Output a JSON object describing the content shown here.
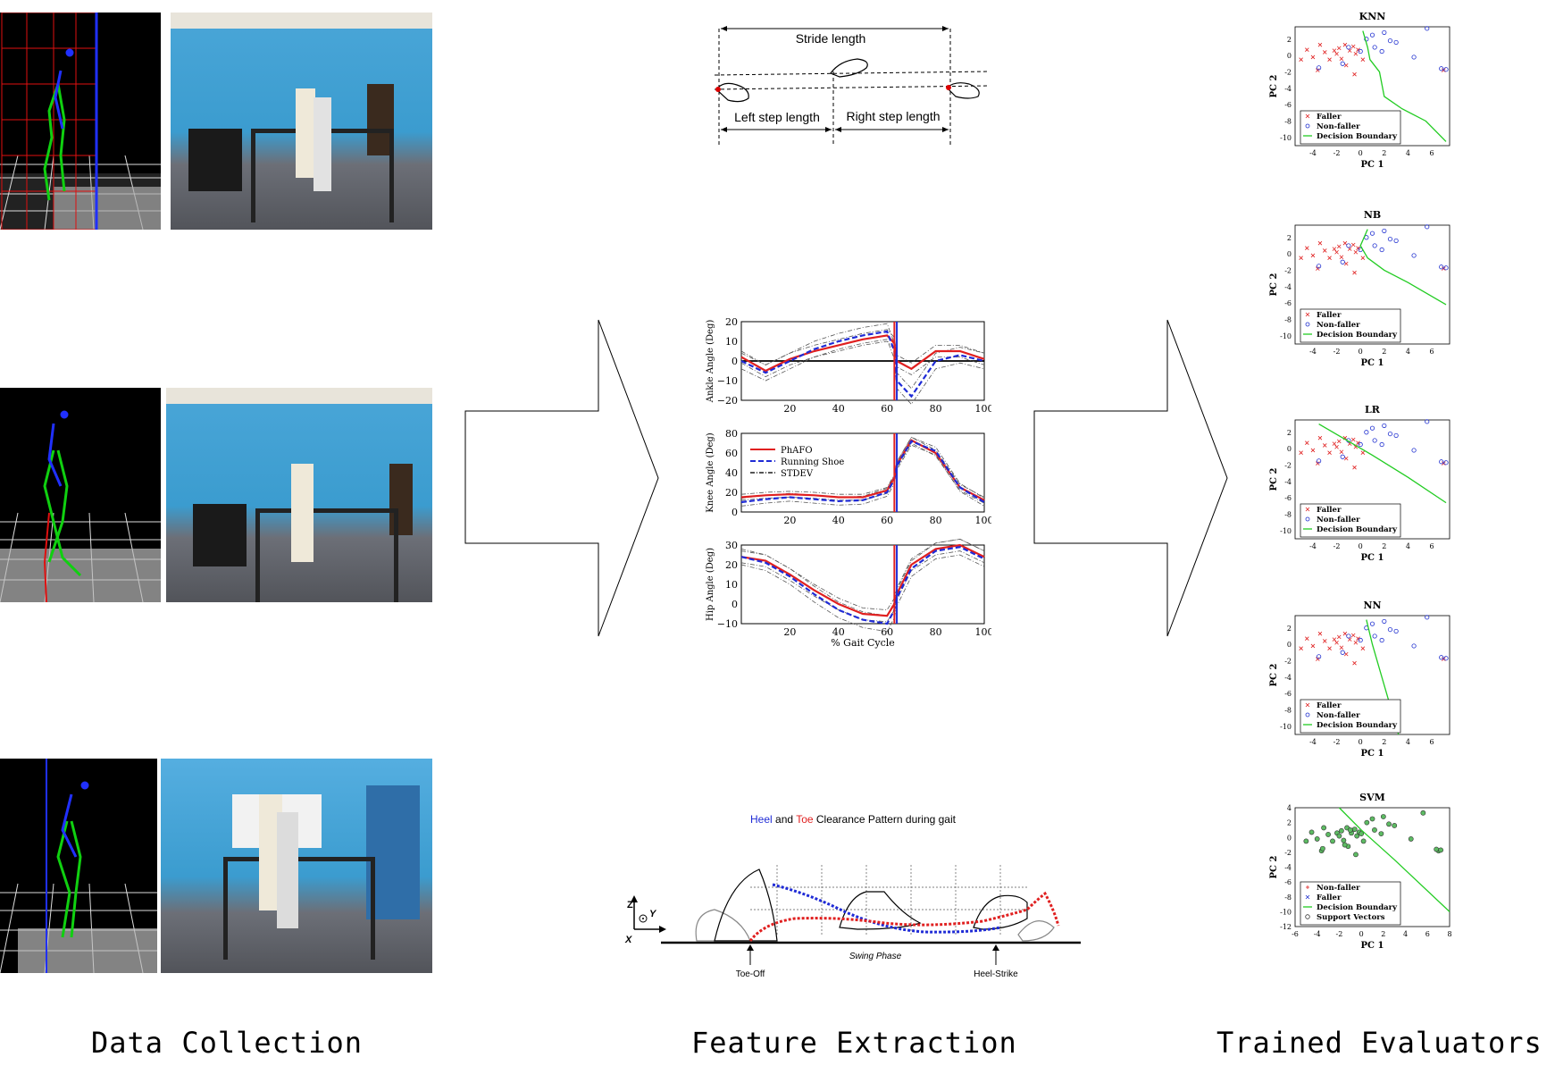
{
  "stages": {
    "data_collection": "Data Collection",
    "feature_extraction": "Feature Extraction",
    "trained_evaluators": "Trained Evaluators"
  },
  "stride": {
    "stride_length": "Stride length",
    "left_step_length": "Left step length",
    "right_step_length": "Right step length"
  },
  "gait_chart": {
    "panels": [
      {
        "ylabel": "Ankle Angle (Deg)",
        "yticks": [
          "20",
          "10",
          "0",
          "−10",
          "−20"
        ]
      },
      {
        "ylabel": "Knee Angle (Deg)",
        "yticks": [
          "80",
          "60",
          "40",
          "20",
          "0"
        ]
      },
      {
        "ylabel": "Hip Angle (Deg)",
        "yticks": [
          "30",
          "20",
          "10",
          "0",
          "−10"
        ]
      }
    ],
    "xticks": [
      "20",
      "40",
      "60",
      "80",
      "100"
    ],
    "xlabel": "% Gait Cycle",
    "legend": [
      "PhAFO",
      "Running Shoe",
      "STDEV"
    ],
    "colors": {
      "phafo": "#e02020",
      "running": "#1f2bd6",
      "stdev": "#555555"
    }
  },
  "chart_data": {
    "type": "line",
    "x": [
      0,
      10,
      20,
      30,
      40,
      50,
      60,
      63,
      64,
      70,
      80,
      90,
      100
    ],
    "panels": [
      {
        "name": "Ankle Angle (Deg)",
        "ylim": [
          -20,
          20
        ],
        "series": [
          {
            "name": "PhAFO",
            "values": [
              2,
              -5,
              1,
              5,
              8,
              11,
              13,
              9,
              0,
              -4,
              5,
              5,
              1
            ]
          },
          {
            "name": "Running Shoe",
            "values": [
              0,
              -6,
              0,
              6,
              10,
              13,
              15,
              5,
              -10,
              -18,
              0,
              3,
              0
            ]
          }
        ]
      },
      {
        "name": "Knee Angle (Deg)",
        "ylim": [
          0,
          80
        ],
        "series": [
          {
            "name": "PhAFO",
            "values": [
              15,
              17,
              18,
              17,
              15,
              15,
              22,
              35,
              48,
              73,
              60,
              25,
              12
            ]
          },
          {
            "name": "Running Shoe",
            "values": [
              10,
              13,
              15,
              13,
              11,
              12,
              20,
              33,
              47,
              72,
              62,
              25,
              10
            ]
          }
        ]
      },
      {
        "name": "Hip Angle (Deg)",
        "ylim": [
          -10,
          30
        ],
        "series": [
          {
            "name": "PhAFO",
            "values": [
              24,
              22,
              15,
              7,
              0,
              -5,
              -6,
              0,
              5,
              20,
              28,
              30,
              24
            ]
          },
          {
            "name": "Running Shoe",
            "values": [
              24,
              21,
              14,
              5,
              -3,
              -8,
              -10,
              -3,
              3,
              18,
              27,
              29,
              23
            ]
          }
        ]
      }
    ],
    "xlabel": "% Gait Cycle",
    "vlines": [
      63,
      64
    ]
  },
  "clearance": {
    "title_heel": "Heel",
    "title_and": " and ",
    "title_toe": "Toe",
    "title_rest": " Clearance Pattern during gait",
    "toe_off": "Toe-Off",
    "heel_strike": "Heel-Strike",
    "swing_phase": "Swing Phase",
    "axis_z": "Z",
    "axis_y": "Y",
    "axis_x": "X",
    "heel_color": "#1f2bd6",
    "toe_color": "#e02020"
  },
  "classifiers": [
    {
      "title": "KNN",
      "legend": [
        "Faller",
        "Non-faller",
        "Decision Boundary"
      ]
    },
    {
      "title": "NB",
      "legend": [
        "Faller",
        "Non-faller",
        "Decision Boundary"
      ]
    },
    {
      "title": "LR",
      "legend": [
        "Faller",
        "Non-faller",
        "Decision Boundary"
      ]
    },
    {
      "title": "NN",
      "legend": [
        "Faller",
        "Non-faller",
        "Decision Boundary"
      ]
    },
    {
      "title": "SVM",
      "legend": [
        "Non-faller",
        "Faller",
        "Decision Boundary",
        "Support Vectors"
      ]
    }
  ],
  "classifier_axes": {
    "xlabel": "PC 1",
    "ylabel": "PC 2",
    "xticks": [
      "-4",
      "-2",
      "0",
      "2",
      "4",
      "6"
    ],
    "yticks": [
      "2",
      "0",
      "-2",
      "-4",
      "-6",
      "-8",
      "-10"
    ],
    "svm_xticks": [
      "-6",
      "-4",
      "-2",
      "0",
      "2",
      "4",
      "6",
      "8"
    ],
    "svm_yticks": [
      "4",
      "2",
      "0",
      "-2",
      "-4",
      "-6",
      "-8",
      "-10",
      "-12"
    ]
  }
}
